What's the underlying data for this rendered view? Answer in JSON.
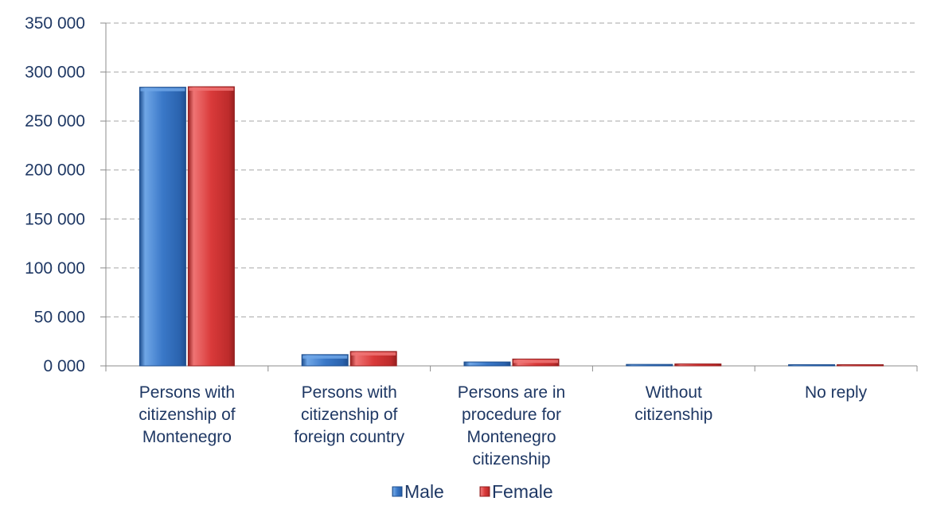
{
  "chart_data": {
    "type": "bar",
    "categories": [
      [
        "Persons with",
        "citizenship of",
        "Montenegro"
      ],
      [
        "Persons with",
        "citizenship of",
        "foreign country"
      ],
      [
        "Persons are in",
        "procedure for",
        "Montenegro",
        "citizenship"
      ],
      [
        "Without",
        "citizenship"
      ],
      [
        "No reply"
      ]
    ],
    "series": [
      {
        "name": "Male",
        "values": [
          284500,
          11500,
          4000,
          1500,
          700
        ],
        "color": "#3a78c8",
        "dark": "#1f4f8f",
        "light": "#6fa6e6"
      },
      {
        "name": "Female",
        "values": [
          285000,
          14700,
          7000,
          2000,
          700
        ],
        "color": "#d93a3a",
        "dark": "#962020",
        "light": "#ef7474"
      }
    ],
    "ylim": [
      0,
      350000
    ],
    "yticks": [
      "0 000",
      "50 000",
      "100 000",
      "150 000",
      "200 000",
      "250 000",
      "300 000",
      "350 000"
    ],
    "grid": true,
    "legend": "bottom"
  }
}
